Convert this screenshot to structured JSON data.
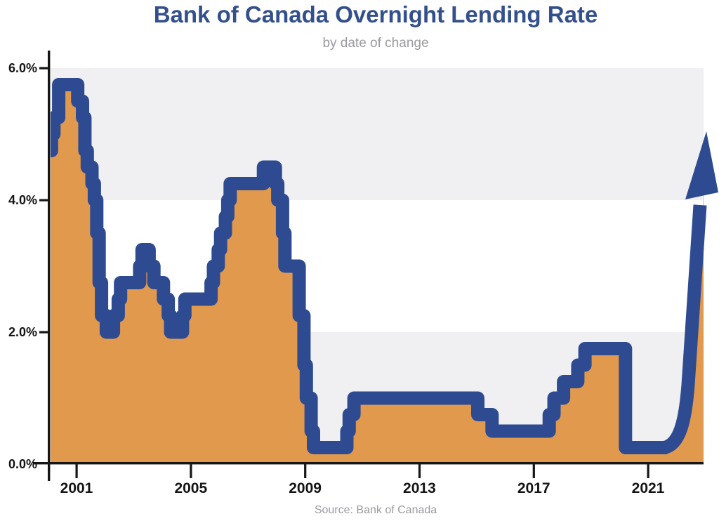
{
  "header": {
    "title": "Bank of Canada Overnight Lending Rate",
    "subtitle": "by date of change"
  },
  "footer": {
    "source": "Source: Bank of Canada"
  },
  "colors": {
    "line_blue": "#2e4b92",
    "area_orange": "#e0994d",
    "band_gray": "#f0f0f2",
    "axis_black": "#161616",
    "title_navy": "#34508c",
    "muted_gray": "#9a9aa0",
    "background": "#ffffff"
  },
  "y_axis": {
    "ticks": [
      {
        "label": "6.0%",
        "value": 6
      },
      {
        "label": "4.0%",
        "value": 4
      },
      {
        "label": "2.0%",
        "value": 2
      },
      {
        "label": "0.0%",
        "value": 0
      }
    ]
  },
  "x_axis": {
    "ticks": [
      {
        "label": "2001",
        "year": 2001
      },
      {
        "label": "2005",
        "year": 2005
      },
      {
        "label": "2009",
        "year": 2009
      },
      {
        "label": "2013",
        "year": 2013
      },
      {
        "label": "2017",
        "year": 2017
      },
      {
        "label": "2021",
        "year": 2021
      }
    ]
  },
  "chart_data": {
    "type": "area",
    "title": "Bank of Canada Overnight Lending Rate",
    "subtitle": "by date of change",
    "source": "Source: Bank of Canada",
    "series_name": "Overnight lending rate",
    "unit": "%",
    "ylim": [
      0,
      6
    ],
    "x_range_years": [
      2000,
      2023
    ],
    "y_tick_labels": [
      "0.0%",
      "2.0%",
      "4.0%",
      "6.0%"
    ],
    "x_tick_labels": [
      "2001",
      "2005",
      "2009",
      "2013",
      "2017",
      "2021"
    ],
    "grid": "alternating horizontal gray bands at 0-2% and 4-6%",
    "legend": "none",
    "changes": [
      [
        "2000-01",
        4.75
      ],
      [
        "2000-02",
        5.0
      ],
      [
        "2000-03",
        5.25
      ],
      [
        "2000-05",
        5.75
      ],
      [
        "2001-01",
        5.5
      ],
      [
        "2001-03",
        5.25
      ],
      [
        "2001-04",
        4.75
      ],
      [
        "2001-05",
        4.5
      ],
      [
        "2001-07",
        4.25
      ],
      [
        "2001-08",
        4.0
      ],
      [
        "2001-09",
        3.5
      ],
      [
        "2001-10",
        2.75
      ],
      [
        "2001-11",
        2.25
      ],
      [
        "2002-01",
        2.0
      ],
      [
        "2002-04",
        2.25
      ],
      [
        "2002-06",
        2.5
      ],
      [
        "2002-07",
        2.75
      ],
      [
        "2003-03",
        3.0
      ],
      [
        "2003-04",
        3.25
      ],
      [
        "2003-07",
        3.0
      ],
      [
        "2003-09",
        2.75
      ],
      [
        "2004-01",
        2.5
      ],
      [
        "2004-03",
        2.25
      ],
      [
        "2004-04",
        2.0
      ],
      [
        "2004-09",
        2.25
      ],
      [
        "2004-10",
        2.5
      ],
      [
        "2005-09",
        2.75
      ],
      [
        "2005-10",
        3.0
      ],
      [
        "2005-12",
        3.25
      ],
      [
        "2006-01",
        3.5
      ],
      [
        "2006-03",
        3.75
      ],
      [
        "2006-04",
        4.0
      ],
      [
        "2006-05",
        4.25
      ],
      [
        "2007-07",
        4.5
      ],
      [
        "2007-12",
        4.25
      ],
      [
        "2008-01",
        4.0
      ],
      [
        "2008-03",
        3.5
      ],
      [
        "2008-04",
        3.0
      ],
      [
        "2008-10",
        2.25
      ],
      [
        "2008-12",
        1.5
      ],
      [
        "2009-01",
        1.0
      ],
      [
        "2009-03",
        0.5
      ],
      [
        "2009-04",
        0.25
      ],
      [
        "2010-06",
        0.5
      ],
      [
        "2010-07",
        0.75
      ],
      [
        "2010-09",
        1.0
      ],
      [
        "2015-01",
        0.75
      ],
      [
        "2015-07",
        0.5
      ],
      [
        "2017-07",
        0.75
      ],
      [
        "2017-09",
        1.0
      ],
      [
        "2018-01",
        1.25
      ],
      [
        "2018-07",
        1.5
      ],
      [
        "2018-10",
        1.75
      ],
      [
        "2020-03",
        0.25
      ],
      [
        "2022-03",
        0.5
      ],
      [
        "2022-04",
        1.0
      ],
      [
        "2022-06",
        1.5
      ],
      [
        "2022-07",
        2.5
      ],
      [
        "2022-09",
        3.25
      ],
      [
        "2022-10",
        3.75
      ],
      [
        "2022-12",
        4.25
      ]
    ],
    "annotation_arrow": {
      "description": "thick navy upward arrow at the right edge showing rates rising sharply through 2022",
      "tip_value_pct": 5.0
    }
  }
}
